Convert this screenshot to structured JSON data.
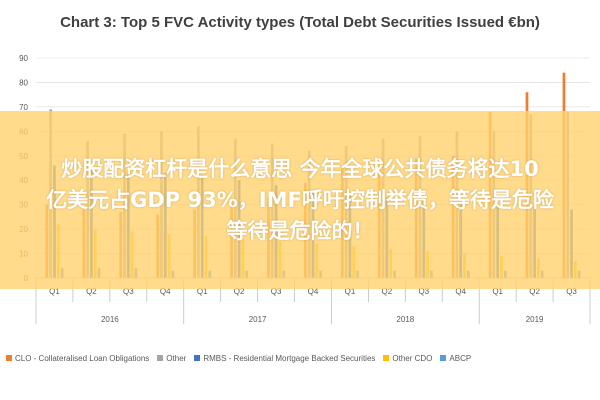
{
  "chart_data": {
    "type": "bar",
    "title": "Chart 3: Top 5 FVC Activity types (Total Debt Securities Issued €bn)",
    "xlabel": "",
    "ylabel": "",
    "ylim": [
      0,
      90
    ],
    "yticks": [
      0,
      10,
      20,
      30,
      40,
      50,
      60,
      70,
      80,
      90
    ],
    "categories": [
      "Q1",
      "Q2",
      "Q3",
      "Q4",
      "Q1",
      "Q2",
      "Q3",
      "Q4",
      "Q1",
      "Q2",
      "Q3",
      "Q4",
      "Q1",
      "Q2",
      "Q3"
    ],
    "years": [
      {
        "label": "2016",
        "count": 4
      },
      {
        "label": "2017",
        "count": 4
      },
      {
        "label": "2018",
        "count": 4
      },
      {
        "label": "2019",
        "count": 3
      }
    ],
    "series": [
      {
        "name": "CLO - Collateralised Loan Obligations",
        "color": "#ED7D31",
        "values": [
          30,
          28,
          27,
          26,
          28,
          31,
          33,
          39,
          45,
          46,
          49,
          50,
          68,
          76,
          84
        ]
      },
      {
        "name": "Other",
        "color": "#A5A5A5",
        "values": [
          69,
          56,
          59,
          60,
          62,
          57,
          55,
          52,
          54,
          57,
          58,
          60,
          60,
          67,
          68
        ]
      },
      {
        "name": "RMBS - Residential Mortgage Backed Securities",
        "color": "#4472C4",
        "values": [
          46,
          45,
          44,
          43,
          42,
          40,
          38,
          36,
          34,
          33,
          32,
          31,
          30,
          29,
          28
        ]
      },
      {
        "name": "Other CDO",
        "color": "#FFC000",
        "values": [
          22,
          20,
          19,
          18,
          17,
          16,
          15,
          14,
          13,
          12,
          11,
          10,
          9,
          8,
          7
        ]
      },
      {
        "name": "ABCP",
        "color": "#5B9BD5",
        "values": [
          4,
          4,
          4,
          3,
          3,
          3,
          3,
          3,
          3,
          3,
          3,
          3,
          3,
          3,
          3
        ]
      }
    ],
    "grid": true,
    "legend": "bottom"
  },
  "overlay": {
    "lines": [
      "炒股配资杠杆是什么意思 今年全球公共债务将达10",
      "亿美元占GDP 93%，IMF呼吁控制举债，等待是危险",
      "等待是危险的！"
    ]
  }
}
